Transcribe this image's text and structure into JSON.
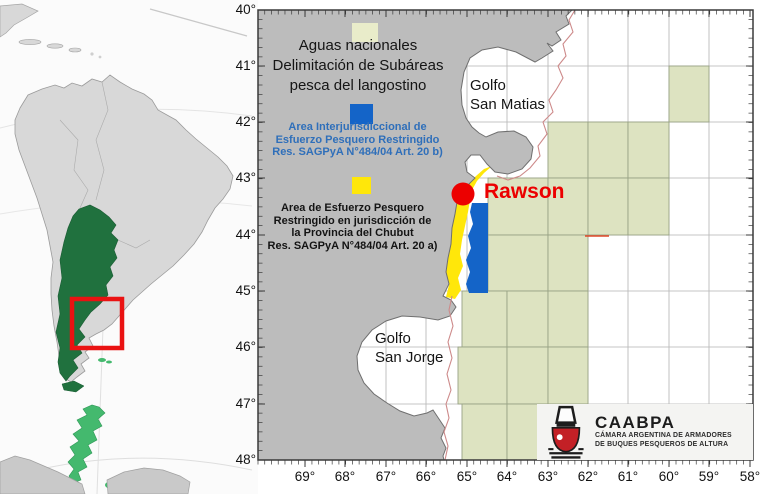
{
  "detail_map": {
    "lat_labels": [
      "40°",
      "41°",
      "42°",
      "43°",
      "44°",
      "45°",
      "46°",
      "47°",
      "48°"
    ],
    "lon_labels": [
      "69°",
      "68°",
      "67°",
      "66°",
      "65°",
      "64°",
      "63°",
      "62°",
      "61°",
      "60°",
      "59°",
      "58°"
    ],
    "labels": {
      "gulf_north_line1": "Golfo",
      "gulf_north_line2": "San Matias",
      "gulf_south_line1": "Golfo",
      "gulf_south_line2": "San Jorge",
      "city": "Rawson"
    },
    "legend": {
      "national_waters_lines": [
        "Aguas nacionales",
        "Delimitación de Subáreas",
        "pesca del langostino"
      ],
      "interjurisdictional_lines": [
        "Area Interjurisdiccional de",
        "Esfuerzo Pesquero Restringido",
        "Res. SAGPyA N°484/04 Art. 20 b)"
      ],
      "chubut_lines": [
        "Area de Esfuerzo Pesquero",
        "Restringido en jurisdicción de",
        "la Provincia del Chubut",
        "Res. SAGPyA N°484/04 Art. 20 a)"
      ]
    },
    "logo": {
      "title": "CAABPA",
      "subtitle_lines": [
        "CÁMARA ARGENTINA DE ARMADORES",
        "DE BUQUES PESQUEROS DE ALTURA"
      ]
    }
  },
  "colors": {
    "national_waters_green": "#dde3c1",
    "restricted_blue": "#1464c8",
    "restricted_yellow": "#ffe70a",
    "highlight_red": "#ec0000",
    "legend_blue_text": "#2f6fba",
    "argentina_green": "#20713e",
    "land_gray": "#bcbcbc",
    "boundary_pink": "#cd8a8a"
  }
}
